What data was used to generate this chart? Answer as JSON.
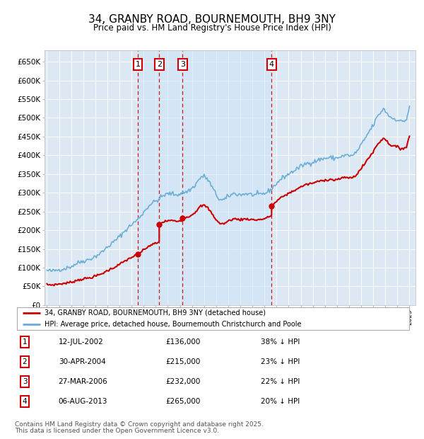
{
  "title": "34, GRANBY ROAD, BOURNEMOUTH, BH9 3NY",
  "subtitle": "Price paid vs. HM Land Registry's House Price Index (HPI)",
  "ylim": [
    0,
    680000
  ],
  "yticks": [
    0,
    50000,
    100000,
    150000,
    200000,
    250000,
    300000,
    350000,
    400000,
    450000,
    500000,
    550000,
    600000,
    650000
  ],
  "ytick_labels": [
    "£0",
    "£50K",
    "£100K",
    "£150K",
    "£200K",
    "£250K",
    "£300K",
    "£350K",
    "£400K",
    "£450K",
    "£500K",
    "£550K",
    "£600K",
    "£650K"
  ],
  "transactions": [
    {
      "num": 1,
      "date": "12-JUL-2002",
      "price": 136000,
      "pct": "38%",
      "x_year": 2002.53
    },
    {
      "num": 2,
      "date": "30-APR-2004",
      "price": 215000,
      "pct": "23%",
      "x_year": 2004.29
    },
    {
      "num": 3,
      "date": "27-MAR-2006",
      "price": 232000,
      "pct": "22%",
      "x_year": 2006.23
    },
    {
      "num": 4,
      "date": "06-AUG-2013",
      "price": 265000,
      "pct": "20%",
      "x_year": 2013.59
    }
  ],
  "hpi_color": "#6baed6",
  "price_color": "#cc0000",
  "transaction_line_color": "#cc0000",
  "box_color": "#cc0000",
  "background_color": "#dce9f5",
  "chart_bg_color": "#e8f0f8",
  "shade_color": "#d0e4f7",
  "legend_label_price": "34, GRANBY ROAD, BOURNEMOUTH, BH9 3NY (detached house)",
  "legend_label_hpi": "HPI: Average price, detached house, Bournemouth Christchurch and Poole",
  "footer_line1": "Contains HM Land Registry data © Crown copyright and database right 2025.",
  "footer_line2": "This data is licensed under the Open Government Licence v3.0.",
  "xlim_start": 1995.0,
  "xlim_end": 2025.5
}
